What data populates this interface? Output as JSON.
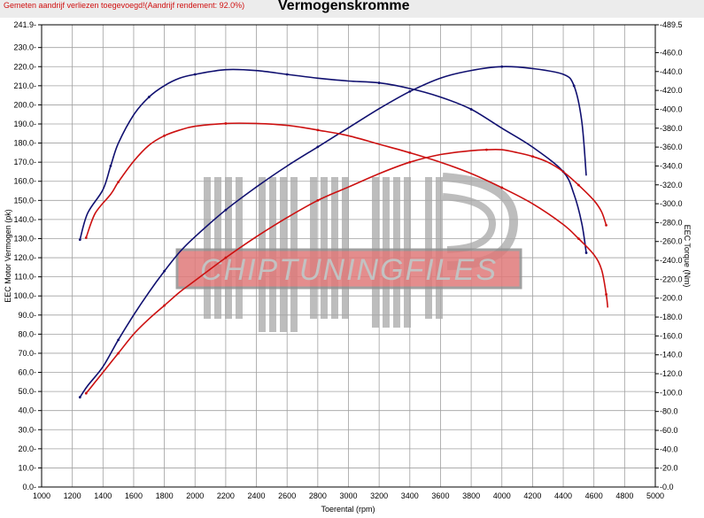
{
  "header": {
    "note": "Gemeten aandrijf verliezen toegevoegd!(Aandrijf rendement: 92.0%)",
    "title": "Vermogenskromme"
  },
  "watermark": {
    "text": "CHIPTUNINGFILES",
    "color": "#e07a7a"
  },
  "colors": {
    "stock": "#cc1010",
    "tuned": "#101070",
    "grid": "#a0a0a0",
    "header_bg": "#ececec"
  },
  "chart_data": {
    "type": "line",
    "title": "Vermogenskromme",
    "xlabel": "Toerental (rpm)",
    "ylabel": "EEC Motor Vermogen (pk)",
    "y2label": "EEC Torque (Nm)",
    "xlim": [
      1000,
      5000
    ],
    "ylim": [
      0,
      241.9
    ],
    "y2lim": [
      0,
      489.5
    ],
    "grid": true,
    "x_ticks": [
      "1000",
      "1200",
      "1400",
      "1600",
      "1800",
      "2000",
      "2200",
      "2400",
      "2600",
      "2800",
      "3000",
      "3200",
      "3400",
      "3600",
      "3800",
      "4000",
      "4200",
      "4400",
      "4600",
      "4800",
      "5000"
    ],
    "y_ticks": [
      "0.0",
      "10.0",
      "20.0",
      "30.0",
      "40.0",
      "50.0",
      "60.0",
      "70.0",
      "80.0",
      "90.0",
      "100.0",
      "110.0",
      "120.0",
      "130.0",
      "140.0",
      "150.0",
      "160.0",
      "170.0",
      "180.0",
      "190.0",
      "200.0",
      "210.0",
      "220.0",
      "230.0",
      "241.9"
    ],
    "y_tick_values": [
      0,
      10,
      20,
      30,
      40,
      50,
      60,
      70,
      80,
      90,
      100,
      110,
      120,
      130,
      140,
      150,
      160,
      170,
      180,
      190,
      200,
      210,
      220,
      230,
      241.9
    ],
    "y2_ticks": [
      "0.0",
      "20.0",
      "40.0",
      "60.0",
      "80.0",
      "100.0",
      "120.0",
      "140.0",
      "160.0",
      "180.0",
      "200.0",
      "220.0",
      "240.0",
      "260.0",
      "280.0",
      "300.0",
      "320.0",
      "340.0",
      "360.0",
      "380.0",
      "400.0",
      "420.0",
      "440.0",
      "460.0",
      "489.5"
    ],
    "y2_tick_values": [
      0,
      20,
      40,
      60,
      80,
      100,
      120,
      140,
      160,
      180,
      200,
      220,
      240,
      260,
      280,
      300,
      320,
      340,
      360,
      380,
      400,
      420,
      440,
      460,
      489.5
    ],
    "series": [
      {
        "role": "power-tuned",
        "color": "#101070",
        "axis": "left",
        "points": [
          [
            1250,
            47
          ],
          [
            1300,
            53
          ],
          [
            1400,
            63
          ],
          [
            1500,
            77
          ],
          [
            1600,
            90
          ],
          [
            1700,
            102
          ],
          [
            1800,
            113
          ],
          [
            1900,
            123
          ],
          [
            2000,
            131
          ],
          [
            2200,
            145
          ],
          [
            2400,
            157
          ],
          [
            2600,
            168
          ],
          [
            2800,
            178
          ],
          [
            3000,
            188
          ],
          [
            3200,
            198
          ],
          [
            3400,
            207
          ],
          [
            3600,
            214
          ],
          [
            3800,
            218
          ],
          [
            4000,
            220
          ],
          [
            4200,
            219
          ],
          [
            4400,
            216
          ],
          [
            4470,
            210
          ],
          [
            4520,
            192
          ],
          [
            4550,
            163
          ]
        ]
      },
      {
        "role": "torque-tuned",
        "color": "#101070",
        "axis": "right",
        "points": [
          [
            1250,
            262
          ],
          [
            1300,
            290
          ],
          [
            1400,
            315
          ],
          [
            1450,
            340
          ],
          [
            1500,
            364
          ],
          [
            1600,
            394
          ],
          [
            1700,
            413
          ],
          [
            1800,
            425
          ],
          [
            1900,
            433
          ],
          [
            2000,
            437
          ],
          [
            2200,
            442
          ],
          [
            2400,
            441
          ],
          [
            2600,
            437
          ],
          [
            2800,
            433
          ],
          [
            3000,
            430
          ],
          [
            3200,
            428
          ],
          [
            3400,
            422
          ],
          [
            3600,
            413
          ],
          [
            3800,
            400
          ],
          [
            4000,
            380
          ],
          [
            4200,
            360
          ],
          [
            4400,
            334
          ],
          [
            4470,
            310
          ],
          [
            4520,
            280
          ],
          [
            4550,
            248
          ]
        ]
      },
      {
        "role": "power-stock",
        "color": "#cc1010",
        "axis": "left",
        "points": [
          [
            1290,
            49
          ],
          [
            1350,
            55
          ],
          [
            1400,
            60
          ],
          [
            1500,
            70
          ],
          [
            1600,
            80
          ],
          [
            1700,
            88
          ],
          [
            1800,
            95
          ],
          [
            1900,
            102
          ],
          [
            2000,
            108
          ],
          [
            2200,
            120
          ],
          [
            2400,
            131
          ],
          [
            2600,
            141
          ],
          [
            2800,
            150
          ],
          [
            3000,
            157
          ],
          [
            3200,
            164
          ],
          [
            3400,
            170
          ],
          [
            3600,
            174
          ],
          [
            3800,
            176
          ],
          [
            3900,
            176.5
          ],
          [
            4000,
            176.5
          ],
          [
            4100,
            175
          ],
          [
            4200,
            173
          ],
          [
            4300,
            170
          ],
          [
            4400,
            165
          ],
          [
            4500,
            158
          ],
          [
            4600,
            150
          ],
          [
            4650,
            144
          ],
          [
            4680,
            137
          ]
        ]
      },
      {
        "role": "torque-stock",
        "color": "#cc1010",
        "axis": "right",
        "points": [
          [
            1290,
            264
          ],
          [
            1350,
            290
          ],
          [
            1450,
            310
          ],
          [
            1500,
            323
          ],
          [
            1600,
            345
          ],
          [
            1700,
            362
          ],
          [
            1800,
            372
          ],
          [
            1900,
            378
          ],
          [
            2000,
            382
          ],
          [
            2200,
            385
          ],
          [
            2400,
            385
          ],
          [
            2600,
            383
          ],
          [
            2800,
            378
          ],
          [
            3000,
            372
          ],
          [
            3200,
            363
          ],
          [
            3400,
            354
          ],
          [
            3600,
            344
          ],
          [
            3800,
            332
          ],
          [
            4000,
            317
          ],
          [
            4200,
            300
          ],
          [
            4400,
            278
          ],
          [
            4500,
            263
          ],
          [
            4600,
            246
          ],
          [
            4650,
            230
          ],
          [
            4680,
            204
          ],
          [
            4690,
            190
          ]
        ]
      }
    ]
  }
}
